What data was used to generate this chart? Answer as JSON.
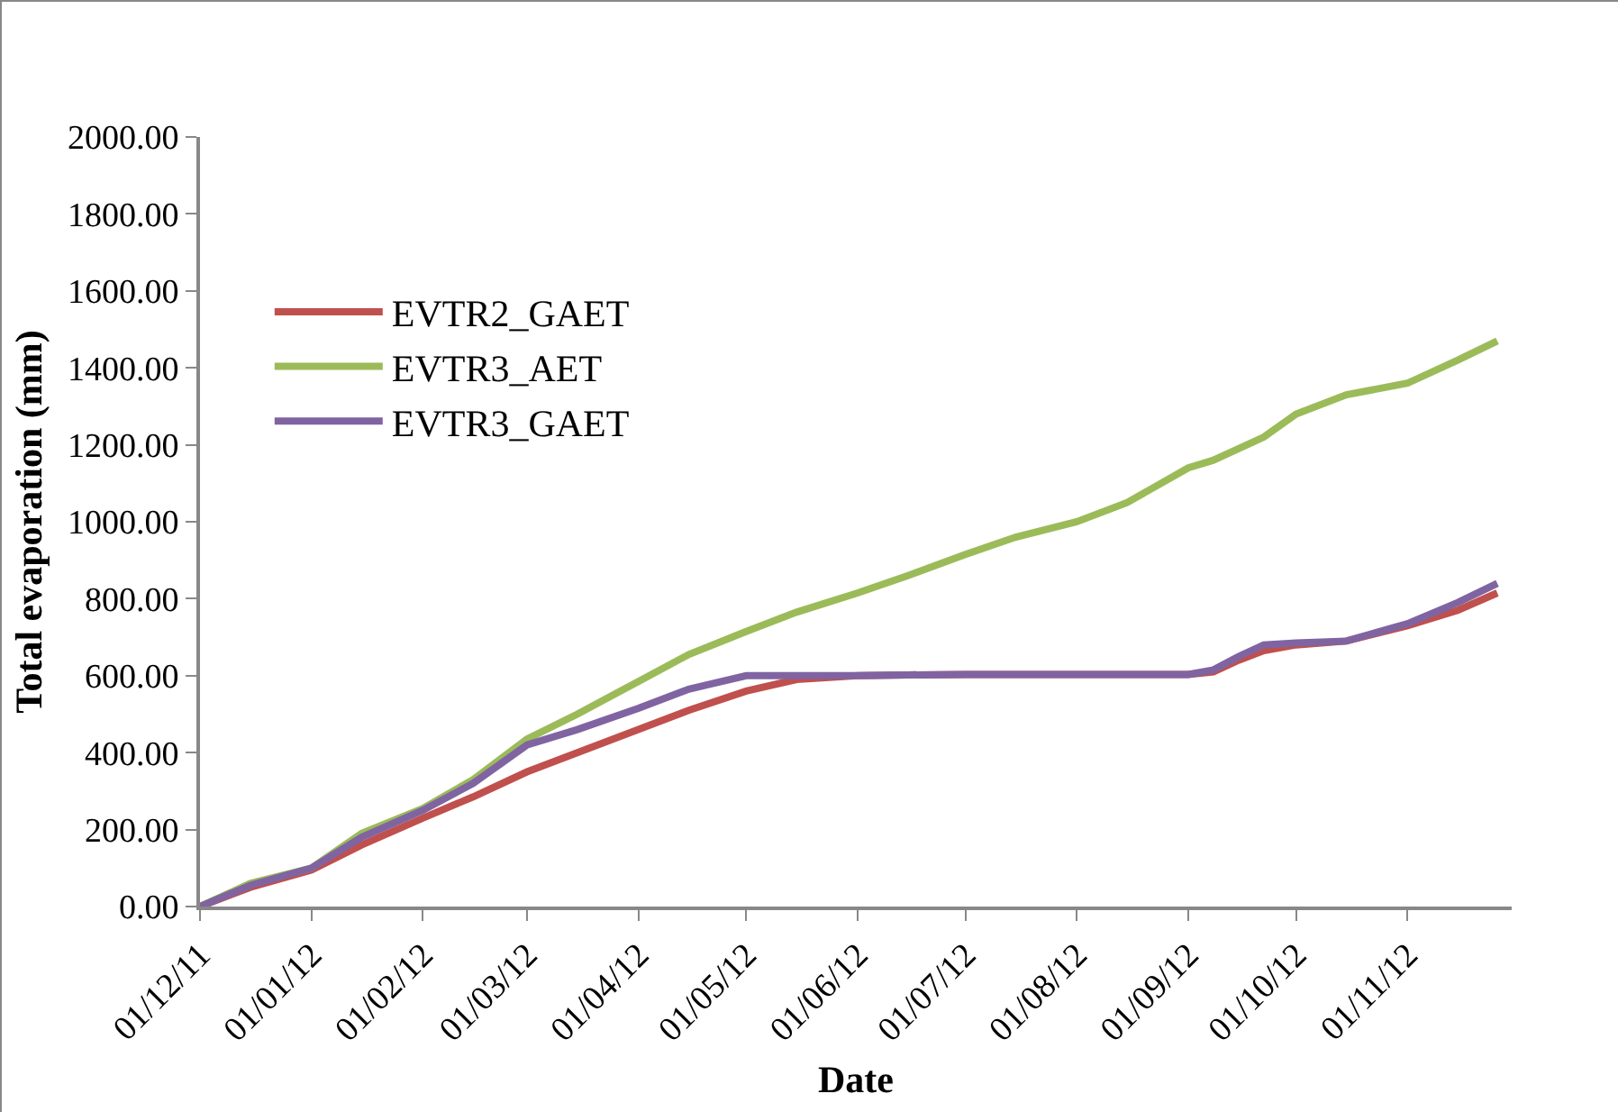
{
  "chart_data": {
    "type": "line",
    "xlabel": "Date",
    "ylabel": "Total evaporation (mm)",
    "x": [
      "2011-12-01",
      "2011-12-15",
      "2012-01-01",
      "2012-01-15",
      "2012-02-01",
      "2012-02-15",
      "2012-03-01",
      "2012-03-15",
      "2012-04-01",
      "2012-04-15",
      "2012-05-01",
      "2012-05-15",
      "2012-06-01",
      "2012-06-15",
      "2012-07-01",
      "2012-07-15",
      "2012-08-01",
      "2012-08-15",
      "2012-09-01",
      "2012-09-08",
      "2012-09-15",
      "2012-09-22",
      "2012-10-01",
      "2012-10-15",
      "2012-11-01",
      "2012-11-15",
      "2012-11-26"
    ],
    "series": [
      {
        "name": "EVTR2_GAET",
        "color": "#c0504d",
        "values": [
          0,
          50,
          95,
          160,
          230,
          285,
          350,
          400,
          460,
          510,
          560,
          590,
          600,
          602,
          603,
          603,
          603,
          603,
          603,
          610,
          640,
          665,
          680,
          690,
          730,
          770,
          815
        ]
      },
      {
        "name": "EVTR3_AET",
        "color": "#9bbb59",
        "values": [
          0,
          60,
          100,
          190,
          255,
          330,
          435,
          500,
          585,
          655,
          715,
          765,
          815,
          860,
          915,
          960,
          1000,
          1050,
          1140,
          1160,
          1190,
          1220,
          1280,
          1330,
          1360,
          1420,
          1470
        ]
      },
      {
        "name": "EVTR3_GAET",
        "color": "#8064a2",
        "values": [
          0,
          55,
          100,
          180,
          250,
          320,
          420,
          460,
          515,
          565,
          600,
          600,
          600,
          602,
          603,
          603,
          603,
          603,
          603,
          615,
          650,
          680,
          685,
          690,
          735,
          790,
          840
        ]
      }
    ],
    "xlim": [
      "2011-12-01",
      "2012-11-30"
    ],
    "xticks": [
      {
        "value": "2011-12-01",
        "label": "01/12/11"
      },
      {
        "value": "2012-01-01",
        "label": "01/01/12"
      },
      {
        "value": "2012-02-01",
        "label": "01/02/12"
      },
      {
        "value": "2012-03-01",
        "label": "01/03/12"
      },
      {
        "value": "2012-04-01",
        "label": "01/04/12"
      },
      {
        "value": "2012-05-01",
        "label": "01/05/12"
      },
      {
        "value": "2012-06-01",
        "label": "01/06/12"
      },
      {
        "value": "2012-07-01",
        "label": "01/07/12"
      },
      {
        "value": "2012-08-01",
        "label": "01/08/12"
      },
      {
        "value": "2012-09-01",
        "label": "01/09/12"
      },
      {
        "value": "2012-10-01",
        "label": "01/10/12"
      },
      {
        "value": "2012-11-01",
        "label": "01/11/12"
      }
    ],
    "ylim": [
      0,
      2000
    ],
    "yticks": [
      {
        "value": 0,
        "label": "0.00"
      },
      {
        "value": 200,
        "label": "200.00"
      },
      {
        "value": 400,
        "label": "400.00"
      },
      {
        "value": 600,
        "label": "600.00"
      },
      {
        "value": 800,
        "label": "800.00"
      },
      {
        "value": 1000,
        "label": "1000.00"
      },
      {
        "value": 1200,
        "label": "1200.00"
      },
      {
        "value": 1400,
        "label": "1400.00"
      },
      {
        "value": 1600,
        "label": "1600.00"
      },
      {
        "value": 1800,
        "label": "1800.00"
      },
      {
        "value": 2000,
        "label": "2000.00"
      }
    ],
    "grid": false,
    "legend": "top left",
    "marker": "none",
    "line_style": "solid"
  }
}
